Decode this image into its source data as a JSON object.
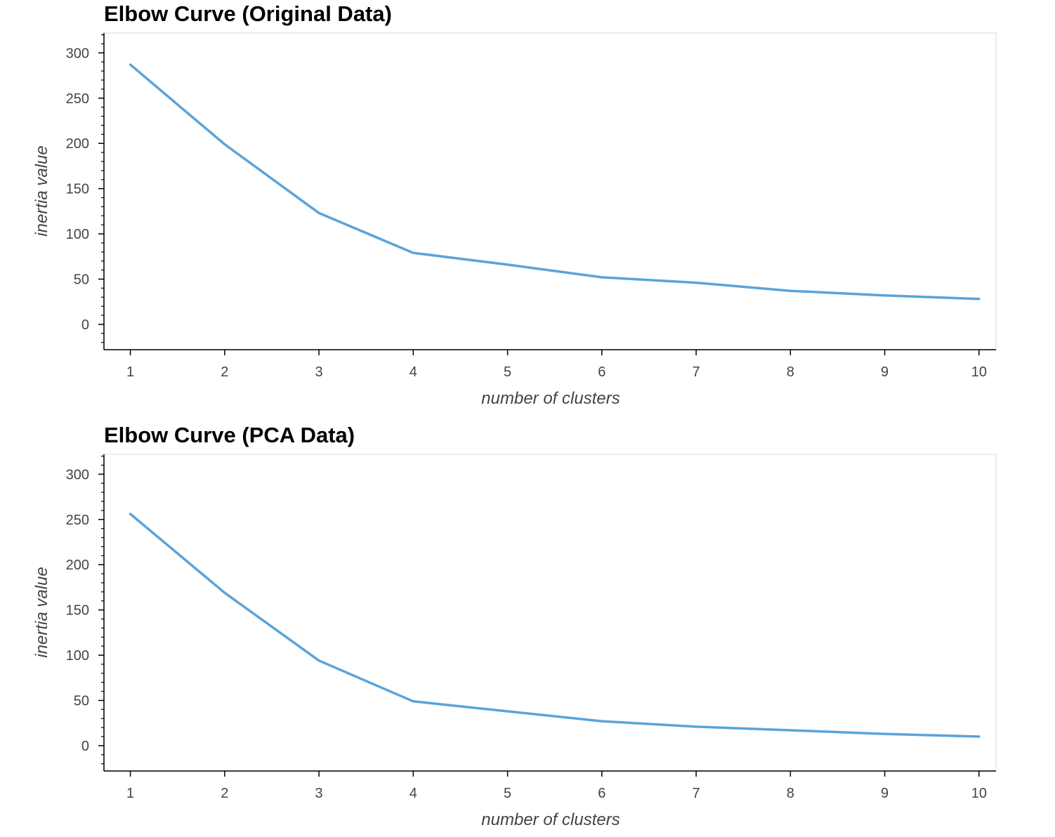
{
  "chart_data": [
    {
      "type": "line",
      "title": "Elbow Curve (Original Data)",
      "xlabel": "number of clusters",
      "ylabel": "inertia value",
      "x": [
        1,
        2,
        3,
        4,
        5,
        6,
        7,
        8,
        9,
        10
      ],
      "series": [
        {
          "values": [
            287,
            199,
            123,
            79,
            66,
            52,
            46,
            37,
            32,
            28
          ]
        }
      ],
      "x_ticks": [
        1,
        2,
        3,
        4,
        5,
        6,
        7,
        8,
        9,
        10
      ],
      "y_ticks": [
        0,
        50,
        100,
        150,
        200,
        250,
        300
      ],
      "xlim": [
        0.72,
        10.18
      ],
      "ylim": [
        -28,
        322
      ],
      "line_color": "#5ba3d9",
      "grid": false,
      "legend": "none"
    },
    {
      "type": "line",
      "title": "Elbow Curve (PCA Data)",
      "xlabel": "number of clusters",
      "ylabel": "inertia value",
      "x": [
        1,
        2,
        3,
        4,
        5,
        6,
        7,
        8,
        9,
        10
      ],
      "series": [
        {
          "values": [
            256,
            169,
            94,
            49,
            38,
            27,
            21,
            17,
            13,
            10
          ]
        }
      ],
      "x_ticks": [
        1,
        2,
        3,
        4,
        5,
        6,
        7,
        8,
        9,
        10
      ],
      "y_ticks": [
        0,
        50,
        100,
        150,
        200,
        250,
        300
      ],
      "xlim": [
        0.72,
        10.18
      ],
      "ylim": [
        -28,
        322
      ],
      "line_color": "#5ba3d9",
      "grid": false,
      "legend": "none"
    }
  ]
}
